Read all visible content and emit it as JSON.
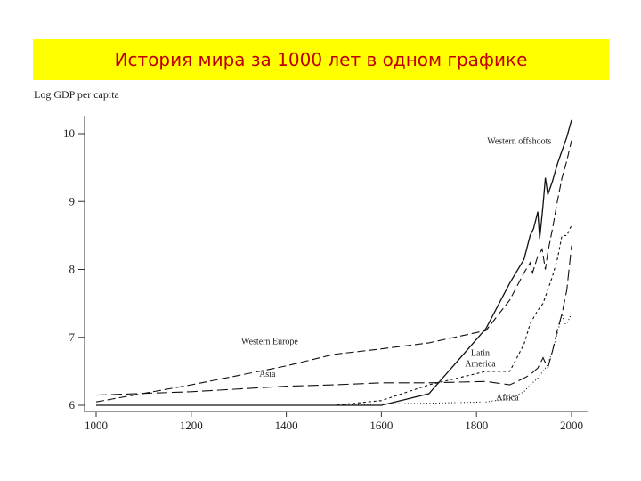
{
  "banner": {
    "title": "История  мира за 1000 лет в одном графике",
    "background": "#ffff00",
    "text_color": "#c00000"
  },
  "chart_data": {
    "type": "line",
    "title": "",
    "xlabel": "",
    "ylabel": "Log GDP per capita",
    "xlim": [
      1000,
      2000
    ],
    "ylim": [
      6,
      10.3
    ],
    "x_ticks": [
      1000,
      1200,
      1400,
      1600,
      1800,
      2000
    ],
    "y_ticks": [
      6,
      7,
      8,
      9,
      10
    ],
    "grid": false,
    "series": [
      {
        "name": "Western offshoots",
        "style": "solid",
        "points": [
          [
            1000,
            6.0
          ],
          [
            1600,
            6.0
          ],
          [
            1700,
            6.17
          ],
          [
            1820,
            7.13
          ],
          [
            1870,
            7.8
          ],
          [
            1900,
            8.15
          ],
          [
            1913,
            8.5
          ],
          [
            1920,
            8.6
          ],
          [
            1929,
            8.85
          ],
          [
            1933,
            8.45
          ],
          [
            1940,
            8.95
          ],
          [
            1945,
            9.35
          ],
          [
            1950,
            9.1
          ],
          [
            1960,
            9.3
          ],
          [
            1970,
            9.55
          ],
          [
            1980,
            9.75
          ],
          [
            1990,
            9.95
          ],
          [
            2000,
            10.2
          ]
        ]
      },
      {
        "name": "Western Europe",
        "style": "dashed",
        "points": [
          [
            1000,
            6.05
          ],
          [
            1200,
            6.3
          ],
          [
            1400,
            6.58
          ],
          [
            1500,
            6.75
          ],
          [
            1600,
            6.83
          ],
          [
            1700,
            6.92
          ],
          [
            1820,
            7.1
          ],
          [
            1870,
            7.55
          ],
          [
            1900,
            7.95
          ],
          [
            1913,
            8.1
          ],
          [
            1918,
            7.95
          ],
          [
            1929,
            8.2
          ],
          [
            1938,
            8.3
          ],
          [
            1945,
            8.0
          ],
          [
            1950,
            8.25
          ],
          [
            1960,
            8.6
          ],
          [
            1970,
            9.0
          ],
          [
            1980,
            9.35
          ],
          [
            1990,
            9.6
          ],
          [
            2000,
            9.9
          ]
        ]
      },
      {
        "name": "Latin America",
        "style": "short-dashed",
        "points": [
          [
            1000,
            6.0
          ],
          [
            1500,
            6.0
          ],
          [
            1600,
            6.07
          ],
          [
            1700,
            6.3
          ],
          [
            1820,
            6.5
          ],
          [
            1870,
            6.5
          ],
          [
            1900,
            6.9
          ],
          [
            1913,
            7.2
          ],
          [
            1929,
            7.4
          ],
          [
            1940,
            7.5
          ],
          [
            1950,
            7.7
          ],
          [
            1960,
            7.9
          ],
          [
            1970,
            8.15
          ],
          [
            1980,
            8.5
          ],
          [
            1990,
            8.5
          ],
          [
            2000,
            8.65
          ]
        ]
      },
      {
        "name": "Asia",
        "style": "long-dashed",
        "points": [
          [
            1000,
            6.15
          ],
          [
            1200,
            6.2
          ],
          [
            1400,
            6.28
          ],
          [
            1500,
            6.3
          ],
          [
            1600,
            6.33
          ],
          [
            1700,
            6.33
          ],
          [
            1820,
            6.35
          ],
          [
            1870,
            6.3
          ],
          [
            1900,
            6.4
          ],
          [
            1913,
            6.45
          ],
          [
            1929,
            6.55
          ],
          [
            1940,
            6.7
          ],
          [
            1950,
            6.55
          ],
          [
            1960,
            6.8
          ],
          [
            1970,
            7.1
          ],
          [
            1980,
            7.35
          ],
          [
            1990,
            7.7
          ],
          [
            2000,
            8.35
          ]
        ]
      },
      {
        "name": "Africa",
        "style": "dotted",
        "points": [
          [
            1000,
            6.0
          ],
          [
            1500,
            6.0
          ],
          [
            1600,
            6.02
          ],
          [
            1700,
            6.03
          ],
          [
            1820,
            6.05
          ],
          [
            1870,
            6.1
          ],
          [
            1900,
            6.2
          ],
          [
            1913,
            6.3
          ],
          [
            1929,
            6.4
          ],
          [
            1940,
            6.5
          ],
          [
            1950,
            6.6
          ],
          [
            1960,
            6.8
          ],
          [
            1970,
            7.05
          ],
          [
            1980,
            7.35
          ],
          [
            1985,
            7.2
          ],
          [
            1990,
            7.2
          ],
          [
            2000,
            7.35
          ]
        ]
      }
    ],
    "annotations": [
      {
        "text": "Western offshoots",
        "x": 1890,
        "y": 9.85
      },
      {
        "text": "Western Europe",
        "x": 1365,
        "y": 6.9
      },
      {
        "text": "Latin",
        "x": 1808,
        "y": 6.73
      },
      {
        "text": "America",
        "x": 1808,
        "y": 6.57
      },
      {
        "text": "Asia",
        "x": 1360,
        "y": 6.42
      },
      {
        "text": "Africa",
        "x": 1865,
        "y": 6.07
      }
    ]
  }
}
